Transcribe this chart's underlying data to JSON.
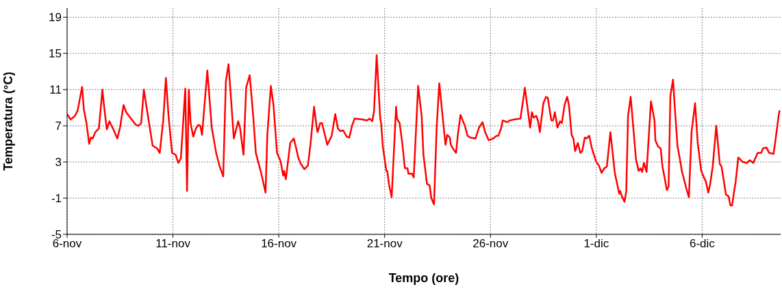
{
  "chart_data": {
    "type": "line",
    "xlabel": "Tempo (ore)",
    "ylabel": "Temperatura (°C)",
    "grid": true,
    "xlim": [
      "--11-06T00:00",
      "--12-09T17:00"
    ],
    "ylim": [
      -5,
      20
    ],
    "xticks": [
      {
        "value": "--11-06",
        "label": "6-nov"
      },
      {
        "value": "--11-11",
        "label": "11-nov"
      },
      {
        "value": "--11-16",
        "label": "16-nov"
      },
      {
        "value": "--11-21",
        "label": "21-nov"
      },
      {
        "value": "--11-26",
        "label": "26-nov"
      },
      {
        "value": "--12-01",
        "label": "1-dic"
      },
      {
        "value": "--12-06",
        "label": "6-dic"
      }
    ],
    "yticks": [
      -5,
      -1,
      3,
      7,
      11,
      15,
      19
    ],
    "series": [
      {
        "color": "#ff0000",
        "x": [
          "--11-06T00:00",
          "--11-06T04:00",
          "--11-06T09:00",
          "--11-06T12:00",
          "--11-06T17:00",
          "--11-06T19:00",
          "--11-06T22:00",
          "--11-07T01:00",
          "--11-07T03:00",
          "--11-07T05:00",
          "--11-07T08:00",
          "--11-07T12:00",
          "--11-07T14:00",
          "--11-07T16:00",
          "--11-07T18:00",
          "--11-07T21:00",
          "--11-08T00:00",
          "--11-08T04:00",
          "--11-08T09:00",
          "--11-08T12:00",
          "--11-08T16:00",
          "--11-08T19:00",
          "--11-09T02:00",
          "--11-09T06:00",
          "--11-09T09:00",
          "--11-09T12:00",
          "--11-09T15:00",
          "--11-09T19:00",
          "--11-10T01:00",
          "--11-10T06:00",
          "--11-10T09:00",
          "--11-10T13:00",
          "--11-10T16:00",
          "--11-10T19:00",
          "--11-10T23:00",
          "--11-11T03:00",
          "--11-11T06:00",
          "--11-11T09:00",
          "--11-11T14:00",
          "--11-11T16:00",
          "--11-11T18:00",
          "--11-11T20:00",
          "--11-11T23:00",
          "--11-12T02:00",
          "--11-12T05:00",
          "--11-12T07:00",
          "--11-12T09:00",
          "--11-12T15:00",
          "--11-12T20:00",
          "--11-13T01:00",
          "--11-13T05:00",
          "--11-13T09:00",
          "--11-13T12:00",
          "--11-13T15:00",
          "--11-13T18:00",
          "--11-13T21:00",
          "--11-14T02:00",
          "--11-14T04:00",
          "--11-14T08:00",
          "--11-14T11:00",
          "--11-14T15:00",
          "--11-14T19:00",
          "--11-14T22:00",
          "--11-15T04:00",
          "--11-15T09:00",
          "--11-15T11:00",
          "--11-15T15:00",
          "--11-15T18:00",
          "--11-15T22:00",
          "--11-16T02:00",
          "--11-16T05:00",
          "--11-16T06:00",
          "--11-16T08:00",
          "--11-16T13:00",
          "--11-16T17:00",
          "--11-16T20:00",
          "--11-16T22:00",
          "--11-17T01:00",
          "--11-17T05:00",
          "--11-17T09:00",
          "--11-17T12:00",
          "--11-17T16:00",
          "--11-17T19:00",
          "--11-17T20:00",
          "--11-17T23:00",
          "--11-18T01:00",
          "--11-18T07:00",
          "--11-18T12:00",
          "--11-18T16:00",
          "--11-18T19:00",
          "--11-18T22:00",
          "--11-19T01:00",
          "--11-19T05:00",
          "--11-19T08:00",
          "--11-19T11:00",
          "--11-19T14:00",
          "--11-19T22:00",
          "--11-20T04:00",
          "--11-20T07:00",
          "--11-20T10:00",
          "--11-20T12:00",
          "--11-20T15:00",
          "--11-20T19:00",
          "--11-20T20:00",
          "--11-20T22:00",
          "--11-21T02:00",
          "--11-21T03:00",
          "--11-21T05:00",
          "--11-21T08:00",
          "--11-21T13:00",
          "--11-21T14:00",
          "--11-21T17:00",
          "--11-21T20:00",
          "--11-21T23:00",
          "--11-22T02:00",
          "--11-22T03:00",
          "--11-22T07:00",
          "--11-22T09:00",
          "--11-22T14:00",
          "--11-22T18:00",
          "--11-22T20:00",
          "--11-23T00:00",
          "--11-23T03:00",
          "--11-23T05:00",
          "--11-23T08:00",
          "--11-23T11:00",
          "--11-23T14:00",
          "--11-23T18:00",
          "--11-23T21:00",
          "--11-23T23:00",
          "--11-24T02:00",
          "--11-24T03:00",
          "--11-24T06:00",
          "--11-24T09:00",
          "--11-24T11:00",
          "--11-24T14:00",
          "--11-24T19:00",
          "--11-24T22:00",
          "--11-25T01:00",
          "--11-25T07:00",
          "--11-25T11:00",
          "--11-25T15:00",
          "--11-25T18:00",
          "--11-25T22:00",
          "--11-26T03:00",
          "--11-26T07:00",
          "--11-26T09:00",
          "--11-26T12:00",
          "--11-26T14:00",
          "--11-26T19:00",
          "--11-26T22:00",
          "--11-27T03:00",
          "--11-27T10:00",
          "--11-27T13:00",
          "--11-27T15:00",
          "--11-27T21:00",
          "--11-27T23:00",
          "--11-28T01:00",
          "--11-28T04:00",
          "--11-28T06:00",
          "--11-28T08:00",
          "--11-28T12:00",
          "--11-28T15:00",
          "--11-28T17:00",
          "--11-28T21:00",
          "--11-28T23:00",
          "--11-29T01:00",
          "--11-29T04:00",
          "--11-29T07:00",
          "--11-29T09:00",
          "--11-29T12:00",
          "--11-29T15:00",
          "--11-29T17:00",
          "--11-29T20:00",
          "--11-29T22:00",
          "--11-30T00:00",
          "--11-30T03:00",
          "--11-30T06:00",
          "--11-30T08:00",
          "--11-30T11:00",
          "--11-30T13:00",
          "--11-30T16:00",
          "--11-30T19:00",
          "--12-01T00:00",
          "--12-01T03:00",
          "--12-01T06:00",
          "--12-01T09:00",
          "--12-01T12:00",
          "--12-01T16:00",
          "--12-01T21:00",
          "--12-02T02:00",
          "--12-02T03:00",
          "--12-02T05:00",
          "--12-02T08:00",
          "--12-02T10:00",
          "--12-02T12:00",
          "--12-02T15:00",
          "--12-02T21:00",
          "--12-03T00:00",
          "--12-03T02:00",
          "--12-03T04:00",
          "--12-03T06:00",
          "--12-03T09:00",
          "--12-03T14:00",
          "--12-03T18:00",
          "--12-03T19:00",
          "--12-03T22:00",
          "--12-04T01:00",
          "--12-04T03:00",
          "--12-04T05:00",
          "--12-04T08:00",
          "--12-04T10:00",
          "--12-04T12:00",
          "--12-04T15:00",
          "--12-04T17:00",
          "--12-04T20:00",
          "--12-04T23:00",
          "--12-05T01:00",
          "--12-05T05:00",
          "--12-05T06:00",
          "--12-05T09:00",
          "--12-05T12:00",
          "--12-05T16:00",
          "--12-05T19:00",
          "--12-05T23:00",
          "--12-06T02:00",
          "--12-06T04:00",
          "--12-06T07:00",
          "--12-06T09:00",
          "--12-06T12:00",
          "--12-06T16:00",
          "--12-06T20:00",
          "--12-06T22:00",
          "--12-07T03:00",
          "--12-07T06:00",
          "--12-07T08:00",
          "--12-07T10:00",
          "--12-07T12:00",
          "--12-07T14:00",
          "--12-07T17:00",
          "--12-07T22:00",
          "--12-08T03:00",
          "--12-08T06:00",
          "--12-08T10:00",
          "--12-08T15:00",
          "--12-08T19:00",
          "--12-08T21:00",
          "--12-09T01:00",
          "--12-09T04:00",
          "--12-09T09:00",
          "--12-09T11:00",
          "--12-09T15:00",
          "--12-09T16:00"
        ],
        "values": [
          8.3,
          7.7,
          8.1,
          8.7,
          11.3,
          8.8,
          7.3,
          5.0,
          5.7,
          5.6,
          6.3,
          6.7,
          8.8,
          11.0,
          9.1,
          6.6,
          7.5,
          6.7,
          5.6,
          6.8,
          9.3,
          8.5,
          7.6,
          7.1,
          7.0,
          7.3,
          11.0,
          8.5,
          4.8,
          4.5,
          4.0,
          7.6,
          12.3,
          8.1,
          4.0,
          3.8,
          2.9,
          3.4,
          11.1,
          -0.2,
          11.0,
          7.3,
          5.8,
          6.7,
          7.1,
          7.0,
          6.0,
          13.1,
          6.8,
          4.0,
          2.5,
          1.4,
          11.9,
          13.8,
          9.8,
          5.6,
          7.5,
          6.8,
          3.8,
          11.2,
          12.6,
          8.1,
          4.0,
          1.8,
          -0.4,
          6.0,
          11.4,
          9.3,
          4.0,
          3.1,
          1.5,
          2.0,
          1.1,
          5.1,
          5.6,
          4.4,
          3.5,
          2.8,
          2.2,
          2.6,
          5.0,
          9.1,
          6.8,
          6.3,
          7.3,
          7.3,
          4.9,
          5.9,
          8.3,
          6.7,
          6.4,
          6.5,
          5.8,
          5.7,
          7.0,
          7.8,
          7.7,
          7.6,
          7.8,
          7.5,
          8.6,
          14.8,
          7.8,
          7.3,
          4.7,
          2.0,
          2.0,
          0.5,
          -0.9,
          9.1,
          7.8,
          7.3,
          5.1,
          2.3,
          2.3,
          1.7,
          1.7,
          1.3,
          11.4,
          8.1,
          3.8,
          0.6,
          0.4,
          -1.0,
          -1.7,
          6.8,
          11.7,
          7.8,
          4.9,
          6.0,
          5.7,
          4.9,
          4.4,
          4.0,
          6.0,
          8.2,
          7.0,
          5.9,
          5.7,
          5.6,
          6.8,
          7.4,
          6.3,
          5.4,
          5.6,
          5.9,
          5.9,
          6.7,
          7.6,
          7.4,
          7.6,
          7.7,
          7.8,
          9.8,
          11.2,
          6.8,
          8.5,
          7.9,
          8.1,
          7.5,
          6.3,
          9.5,
          10.2,
          10.1,
          7.6,
          7.6,
          8.5,
          6.8,
          7.5,
          7.3,
          9.3,
          10.2,
          9.3,
          6.0,
          5.6,
          4.2,
          5.1,
          4.0,
          4.2,
          5.7,
          5.6,
          5.9,
          4.5,
          3.0,
          2.6,
          1.8,
          2.3,
          2.5,
          6.3,
          1.8,
          -0.5,
          -0.2,
          -0.8,
          -1.4,
          -0.2,
          8.1,
          10.2,
          3.3,
          2.0,
          2.3,
          1.9,
          2.9,
          1.9,
          9.7,
          7.6,
          5.4,
          4.7,
          4.5,
          2.5,
          1.5,
          -0.1,
          0.3,
          10.3,
          12.1,
          9.1,
          4.8,
          3.2,
          2.0,
          0.5,
          0.1,
          -0.9,
          6.3,
          9.5,
          5.1,
          2.0,
          1.3,
          0.9,
          -0.4,
          0.5,
          2.5,
          7.0,
          2.8,
          2.5,
          -0.6,
          -0.8,
          -1.8,
          -1.8,
          -0.4,
          0.8,
          3.5,
          3.0,
          2.9,
          3.2,
          2.9,
          4.0,
          4.0,
          4.5,
          4.6,
          4.0,
          3.9,
          5.3,
          8.3,
          8.7
        ]
      }
    ]
  }
}
